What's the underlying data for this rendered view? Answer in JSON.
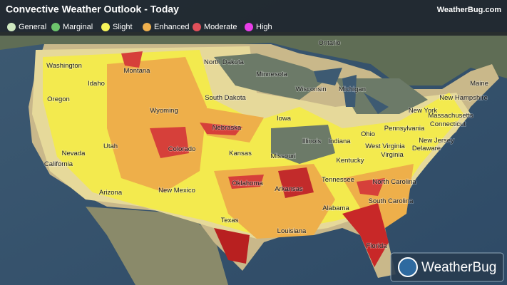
{
  "header": {
    "title": "Convective Weather Outlook - Today",
    "brand": "WeatherBug.com"
  },
  "legend": [
    {
      "label": "General",
      "color": "#cfe8c0"
    },
    {
      "label": "Marginal",
      "color": "#6cc46c"
    },
    {
      "label": "Slight",
      "color": "#f6f45a"
    },
    {
      "label": "Enhanced",
      "color": "#eeb04e"
    },
    {
      "label": "Moderate",
      "color": "#e0505a"
    },
    {
      "label": "High",
      "color": "#e83ee8"
    }
  ],
  "map": {
    "labels": [
      "Ontario",
      "Washington",
      "Montana",
      "North Dakota",
      "Minnesota",
      "Idaho",
      "Oregon",
      "Wyoming",
      "South Dakota",
      "Wisconsin",
      "Michigan",
      "Maine",
      "New Hampshire",
      "New York",
      "Massachusetts",
      "Connecticut",
      "Nebraska",
      "Iowa",
      "Pennsylvania",
      "Ohio",
      "Illinois",
      "Indiana",
      "Nevada",
      "Utah",
      "Colorado",
      "Kansas",
      "Missouri",
      "New Jersey",
      "West Virginia",
      "Delaware",
      "Virginia",
      "California",
      "Kentucky",
      "Tennessee",
      "Oklahoma",
      "Arkansas",
      "North Carolina",
      "New Mexico",
      "Arizona",
      "South Carolina",
      "Alabama",
      "Texas",
      "Louisiana",
      "Florida"
    ]
  },
  "logo": {
    "text": "WeatherBug"
  }
}
